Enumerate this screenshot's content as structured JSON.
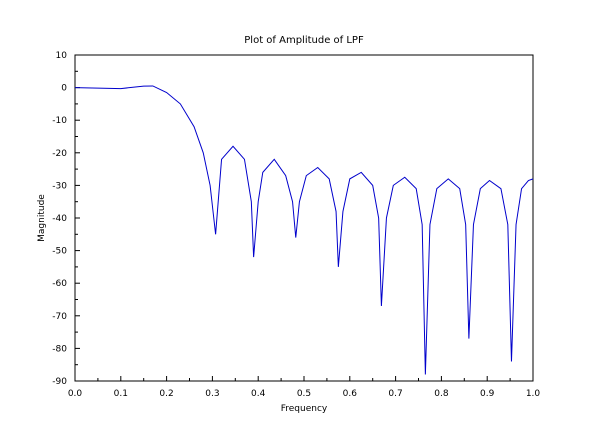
{
  "chart_data": {
    "type": "line",
    "title": "Plot of Amplitude of LPF",
    "xlabel": "Frequency",
    "ylabel": "Magnitude",
    "xlim": [
      0.0,
      1.0
    ],
    "ylim": [
      -90,
      10
    ],
    "x_ticks": [
      "0.0",
      "0.1",
      "0.2",
      "0.3",
      "0.4",
      "0.5",
      "0.6",
      "0.7",
      "0.8",
      "0.9",
      "1.0"
    ],
    "y_ticks": [
      "10",
      "0",
      "-10",
      "-20",
      "-30",
      "-40",
      "-50",
      "-60",
      "-70",
      "-80",
      "-90"
    ],
    "grid": false,
    "line_color": "#0000cc",
    "series": [
      {
        "points": [
          [
            0.0,
            0.0
          ],
          [
            0.05,
            -0.15
          ],
          [
            0.1,
            -0.3
          ],
          [
            0.15,
            0.45
          ],
          [
            0.17,
            0.5
          ],
          [
            0.2,
            -1.5
          ],
          [
            0.23,
            -5
          ],
          [
            0.26,
            -12
          ],
          [
            0.28,
            -20
          ],
          [
            0.295,
            -30
          ],
          [
            0.303,
            -40
          ],
          [
            0.307,
            -45
          ],
          [
            0.32,
            -22
          ],
          [
            0.345,
            -18
          ],
          [
            0.37,
            -22
          ],
          [
            0.385,
            -35
          ],
          [
            0.39,
            -52
          ],
          [
            0.4,
            -35
          ],
          [
            0.41,
            -26
          ],
          [
            0.435,
            -22
          ],
          [
            0.46,
            -27
          ],
          [
            0.475,
            -35
          ],
          [
            0.482,
            -46
          ],
          [
            0.49,
            -35
          ],
          [
            0.505,
            -27
          ],
          [
            0.53,
            -24.5
          ],
          [
            0.555,
            -28
          ],
          [
            0.57,
            -38
          ],
          [
            0.575,
            -55
          ],
          [
            0.585,
            -38
          ],
          [
            0.6,
            -28
          ],
          [
            0.625,
            -26
          ],
          [
            0.65,
            -30
          ],
          [
            0.663,
            -40
          ],
          [
            0.669,
            -67
          ],
          [
            0.68,
            -40
          ],
          [
            0.695,
            -30
          ],
          [
            0.72,
            -27.5
          ],
          [
            0.745,
            -31
          ],
          [
            0.758,
            -42
          ],
          [
            0.765,
            -88
          ],
          [
            0.775,
            -42
          ],
          [
            0.79,
            -31
          ],
          [
            0.815,
            -28
          ],
          [
            0.84,
            -31
          ],
          [
            0.853,
            -42
          ],
          [
            0.86,
            -77
          ],
          [
            0.87,
            -42
          ],
          [
            0.885,
            -31
          ],
          [
            0.905,
            -28.5
          ],
          [
            0.93,
            -31
          ],
          [
            0.945,
            -42
          ],
          [
            0.953,
            -84
          ],
          [
            0.963,
            -42
          ],
          [
            0.975,
            -31
          ],
          [
            0.99,
            -28.5
          ],
          [
            1.0,
            -28
          ]
        ]
      }
    ]
  }
}
